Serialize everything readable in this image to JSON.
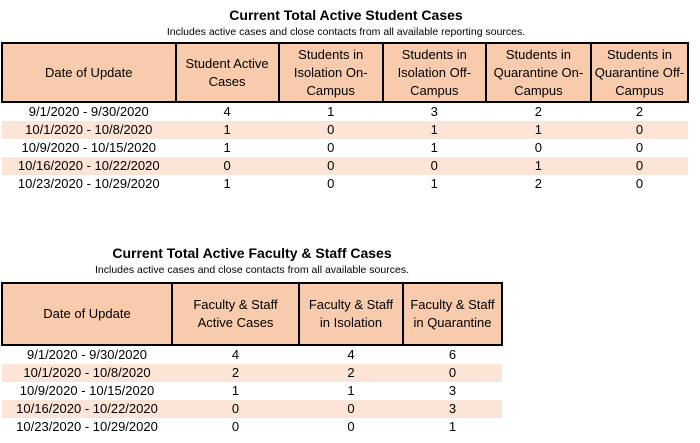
{
  "student_section": {
    "title": "Current Total Active Student Cases",
    "subtitle": "Includes active cases and close contacts from all available reporting sources.",
    "headers": [
      "Date of Update",
      "Student Active Cases",
      "Students in Isolation On-Campus",
      "Students in Isolation Off-Campus",
      "Students in Quarantine On-Campus",
      "Students in Quarantine Off-Campus"
    ],
    "rows": [
      [
        "9/1/2020 - 9/30/2020",
        "4",
        "1",
        "3",
        "2",
        "2"
      ],
      [
        "10/1/2020 - 10/8/2020",
        "1",
        "0",
        "1",
        "1",
        "0"
      ],
      [
        "10/9/2020 - 10/15/2020",
        "1",
        "0",
        "1",
        "0",
        "0"
      ],
      [
        "10/16/2020 - 10/22/2020",
        "0",
        "0",
        "0",
        "1",
        "0"
      ],
      [
        "10/23/2020 - 10/29/2020",
        "1",
        "0",
        "1",
        "2",
        "0"
      ]
    ]
  },
  "staff_section": {
    "title": "Current Total Active Faculty & Staff Cases",
    "subtitle": "Includes active cases and close contacts from all available sources.",
    "headers": [
      "Date of Update",
      "Faculty & Staff Active Cases",
      "Faculty & Staff in Isolation",
      "Faculty & Staff in Quarantine"
    ],
    "rows": [
      [
        "9/1/2020 - 9/30/2020",
        "4",
        "4",
        "6"
      ],
      [
        "10/1/2020 - 10/8/2020",
        "2",
        "2",
        "0"
      ],
      [
        "10/9/2020 - 10/15/2020",
        "1",
        "1",
        "3"
      ],
      [
        "10/16/2020 - 10/22/2020",
        "0",
        "0",
        "3"
      ],
      [
        "10/23/2020 - 10/29/2020",
        "0",
        "0",
        "1"
      ]
    ]
  },
  "colors": {
    "header_fill": "#f8cbad",
    "alt_row_fill": "#fce4d6"
  }
}
